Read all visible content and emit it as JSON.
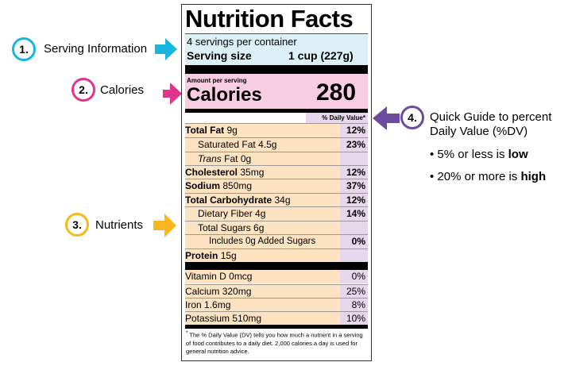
{
  "label": {
    "title": "Nutrition Facts",
    "servings": "4 servings per container",
    "serving_size_label": "Serving size",
    "serving_size": "1 cup (227g)",
    "amount_per_serving": "Amount per serving",
    "calories_label": "Calories",
    "calories": "280",
    "dv_header": "% Daily Value*",
    "nutrients": [
      {
        "name": "Total Fat",
        "amount": "9g",
        "dv": "12%"
      },
      {
        "name": "Saturated Fat",
        "amount": "4.5g",
        "dv": "23%"
      },
      {
        "name_italic": "Trans",
        "name": "Fat",
        "amount": "0g"
      },
      {
        "name": "Cholesterol",
        "amount": "35mg",
        "dv": "12%"
      },
      {
        "name": "Sodium",
        "amount": "850mg",
        "dv": "37%"
      },
      {
        "name": "Total Carbohydrate",
        "amount": "34g",
        "dv": "12%"
      },
      {
        "name": "Dietary Fiber",
        "amount": "4g",
        "dv": "14%"
      },
      {
        "name": "Total Sugars",
        "amount": "6g"
      },
      {
        "name": "Includes 0g Added Sugars",
        "dv": "0%"
      },
      {
        "name": "Protein",
        "amount": "15g"
      }
    ],
    "vitamins": [
      {
        "name": "Vitamin D",
        "amount": "0mcg",
        "dv": "0%"
      },
      {
        "name": "Calcium",
        "amount": "320mg",
        "dv": "25%"
      },
      {
        "name": "Iron",
        "amount": "1.6mg",
        "dv": "8%"
      },
      {
        "name": "Potassium",
        "amount": "510mg",
        "dv": "10%"
      }
    ],
    "footnote_mark": "*",
    "footnote": "The % Daily Value (DV) tells you how much a nutrient in a serving of food contributes to a daily diet. 2,000 calories a day is used for general nutrition advice."
  },
  "callouts": [
    {
      "number": "1.",
      "text": "Serving Information"
    },
    {
      "number": "2.",
      "text": "Calories"
    },
    {
      "number": "3.",
      "text": "Nutrients"
    },
    {
      "number": "4.",
      "lines": [
        "Quick Guide to percent",
        "Daily Value (%DV)"
      ],
      "bullets": [
        {
          "text": "• 5% or less is",
          "bold": "low"
        },
        {
          "text": "• 20% or more is",
          "bold": "high"
        }
      ]
    }
  ]
}
